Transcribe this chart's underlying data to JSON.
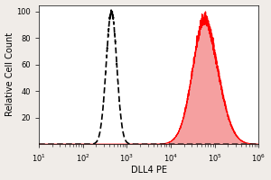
{
  "title": "",
  "xlabel": "DLL4 PE",
  "ylabel": "Relative Cell Count",
  "xlim_log": [
    1,
    6
  ],
  "ylim": [
    0,
    105
  ],
  "yticks": [
    20,
    40,
    60,
    80,
    100
  ],
  "background_color": "#f0ece8",
  "plot_bg_color": "#ffffff",
  "isotype_color": "black",
  "dll4_color": "red",
  "dll4_fill_color": "#f5a0a0",
  "isotype_peak_log": 2.65,
  "isotype_sigma_log": 0.12,
  "dll4_peak_log": 4.85,
  "dll4_sigma_log": 0.3,
  "dll4_peak_height": 100,
  "isotype_peak_height": 100,
  "fontsize_label": 7,
  "fontsize_tick": 6
}
